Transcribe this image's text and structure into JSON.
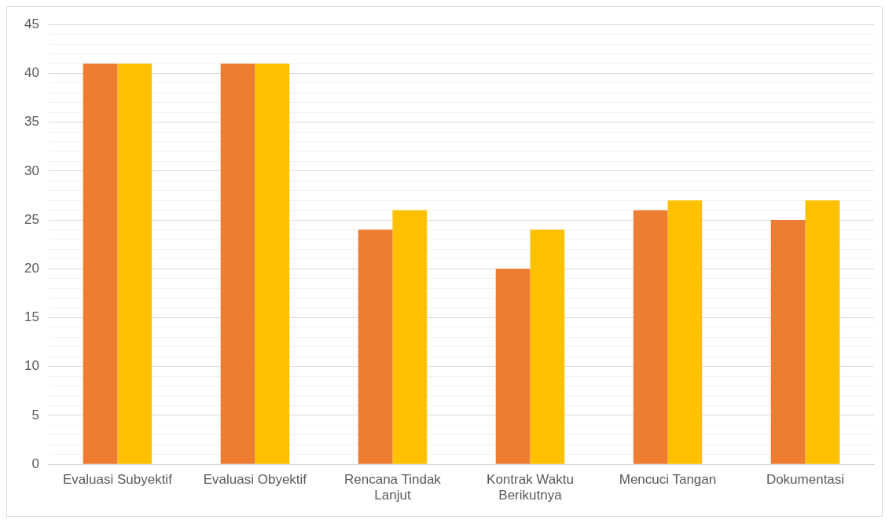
{
  "chart_data": {
    "type": "bar",
    "categories": [
      "Evaluasi Subyektif",
      "Evaluasi Obyektif",
      "Rencana Tindak Lanjut",
      "Kontrak Waktu Berikutnya",
      "Mencuci Tangan",
      "Dokumentasi"
    ],
    "series": [
      {
        "color": "#ed7d31",
        "values": [
          41,
          41,
          24,
          20,
          26,
          25
        ]
      },
      {
        "color": "#ffc000",
        "values": [
          41,
          41,
          26,
          24,
          27,
          27
        ]
      }
    ],
    "ylim": [
      0,
      45
    ],
    "yticks": [
      0,
      {
        "value": 1,
        "label": null
      },
      {
        "value": 2,
        "label": null
      },
      {
        "value": 3,
        "label": null
      },
      {
        "value": 4,
        "label": null
      },
      5,
      {
        "value": 6,
        "label": null
      },
      {
        "value": 7,
        "label": null
      },
      {
        "value": 8,
        "label": null
      },
      {
        "value": 9,
        "label": null
      },
      10,
      {
        "value": 11,
        "label": null
      },
      {
        "value": 12,
        "label": null
      },
      {
        "value": 13,
        "label": null
      },
      {
        "value": 14,
        "label": null
      },
      15,
      {
        "value": 16,
        "label": null
      },
      {
        "value": 17,
        "label": null
      },
      {
        "value": 18,
        "label": null
      },
      {
        "value": 19,
        "label": null
      },
      20,
      {
        "value": 21,
        "label": null
      },
      {
        "value": 22,
        "label": null
      },
      {
        "value": 23,
        "label": null
      },
      {
        "value": 24,
        "label": null
      },
      25,
      {
        "value": 26,
        "label": null
      },
      {
        "value": 27,
        "label": null
      },
      {
        "value": 28,
        "label": null
      },
      {
        "value": 29,
        "label": null
      },
      30,
      {
        "value": 31,
        "label": null
      },
      {
        "value": 32,
        "label": null
      },
      {
        "value": 33,
        "label": null
      },
      {
        "value": 34,
        "label": null
      },
      35,
      {
        "value": 36,
        "label": null
      },
      {
        "value": 37,
        "label": null
      },
      {
        "value": 38,
        "label": null
      },
      {
        "value": 39,
        "label": null
      },
      40,
      {
        "value": 41,
        "label": null
      },
      {
        "value": 42,
        "label": null
      },
      {
        "value": 43,
        "label": null
      },
      {
        "value": 44,
        "label": null
      },
      45
    ],
    "grid": "y",
    "legend": false
  }
}
